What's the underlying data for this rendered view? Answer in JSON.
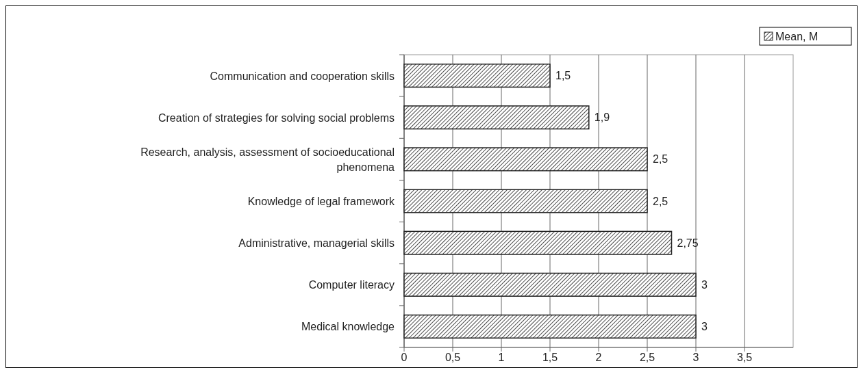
{
  "chart_data": {
    "type": "bar",
    "orientation": "horizontal",
    "categories": [
      "Communication and cooperation skills",
      "Creation of strategies for solving social problems",
      "Research, analysis, assessment of socioeducational phenomena",
      "Knowledge of legal framework",
      "Administrative, managerial skills",
      "Computer literacy",
      "Medical knowledge"
    ],
    "series": [
      {
        "name": "Mean, M",
        "color": "#222222",
        "values": [
          1.5,
          1.9,
          2.5,
          2.5,
          2.75,
          3,
          3
        ],
        "value_labels": [
          "1,5",
          "1,9",
          "2,5",
          "2,5",
          "2,75",
          "3",
          "3"
        ]
      }
    ],
    "xlim": [
      0,
      4
    ],
    "xticks": [
      0,
      {
        "value": 0.5,
        "label": "0,5"
      },
      1,
      {
        "value": 1.5,
        "label": "1,5"
      },
      2,
      {
        "value": 2.5,
        "label": "2,5"
      },
      3,
      {
        "value": 3.5,
        "label": "3,5"
      }
    ],
    "grid": "x",
    "legend": "top right"
  }
}
